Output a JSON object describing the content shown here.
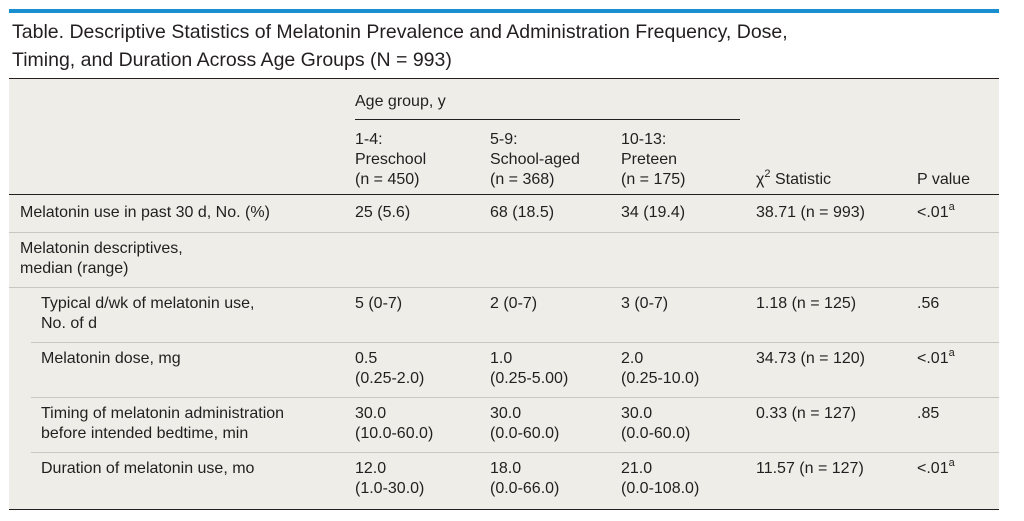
{
  "caption": {
    "line1": "Table. Descriptive Statistics of Melatonin Prevalence and Administration Frequency, Dose,",
    "line2": "Timing, and Duration Across Age Groups (N = 993)"
  },
  "header": {
    "group_label": "Age group, y",
    "col1": [
      "1-4:",
      "Preschool",
      "(n = 450)"
    ],
    "col2": [
      "5-9:",
      "School-aged",
      "(n = 368)"
    ],
    "col3": [
      "10-13:",
      "Preteen",
      "(n = 175)"
    ],
    "chi_label_prefix": "χ",
    "chi_label_sup": "2",
    "chi_label_suffix": " Statistic",
    "p_label": "P value"
  },
  "rows": [
    {
      "label": [
        "Melatonin use in past 30 d, No. (%)"
      ],
      "c1": [
        "25 (5.6)"
      ],
      "c2": [
        "68 (18.5)"
      ],
      "c3": [
        "34 (19.4)"
      ],
      "chi": "38.71 (n = 993)",
      "p": "<.01",
      "p_sup": "a"
    },
    {
      "label": [
        "Melatonin descriptives,",
        "median (range)"
      ]
    },
    {
      "label": [
        "Typical d/wk of melatonin use,",
        "No. of d"
      ],
      "c1": [
        "5 (0-7)"
      ],
      "c2": [
        "2 (0-7)"
      ],
      "c3": [
        "3 (0-7)"
      ],
      "chi": "1.18 (n = 125)",
      "p": ".56",
      "p_sup": ""
    },
    {
      "label": [
        "Melatonin dose, mg"
      ],
      "c1": [
        "0.5",
        "(0.25-2.0)"
      ],
      "c2": [
        "1.0",
        "(0.25-5.00)"
      ],
      "c3": [
        "2.0",
        "(0.25-10.0)"
      ],
      "chi": "34.73 (n = 120)",
      "p": "<.01",
      "p_sup": "a"
    },
    {
      "label": [
        "Timing of melatonin administration",
        "before intended bedtime, min"
      ],
      "c1": [
        "30.0",
        "(10.0-60.0)"
      ],
      "c2": [
        "30.0",
        "(0.0-60.0)"
      ],
      "c3": [
        "30.0",
        "(0.0-60.0)"
      ],
      "chi": "0.33 (n = 127)",
      "p": ".85",
      "p_sup": ""
    },
    {
      "label": [
        "Duration of melatonin use, mo"
      ],
      "c1": [
        "12.0",
        "(1.0-30.0)"
      ],
      "c2": [
        "18.0",
        "(0.0-66.0)"
      ],
      "c3": [
        "21.0",
        "(0.0-108.0)"
      ],
      "chi": "11.57 (n = 127)",
      "p": "<.01",
      "p_sup": "a"
    }
  ]
}
